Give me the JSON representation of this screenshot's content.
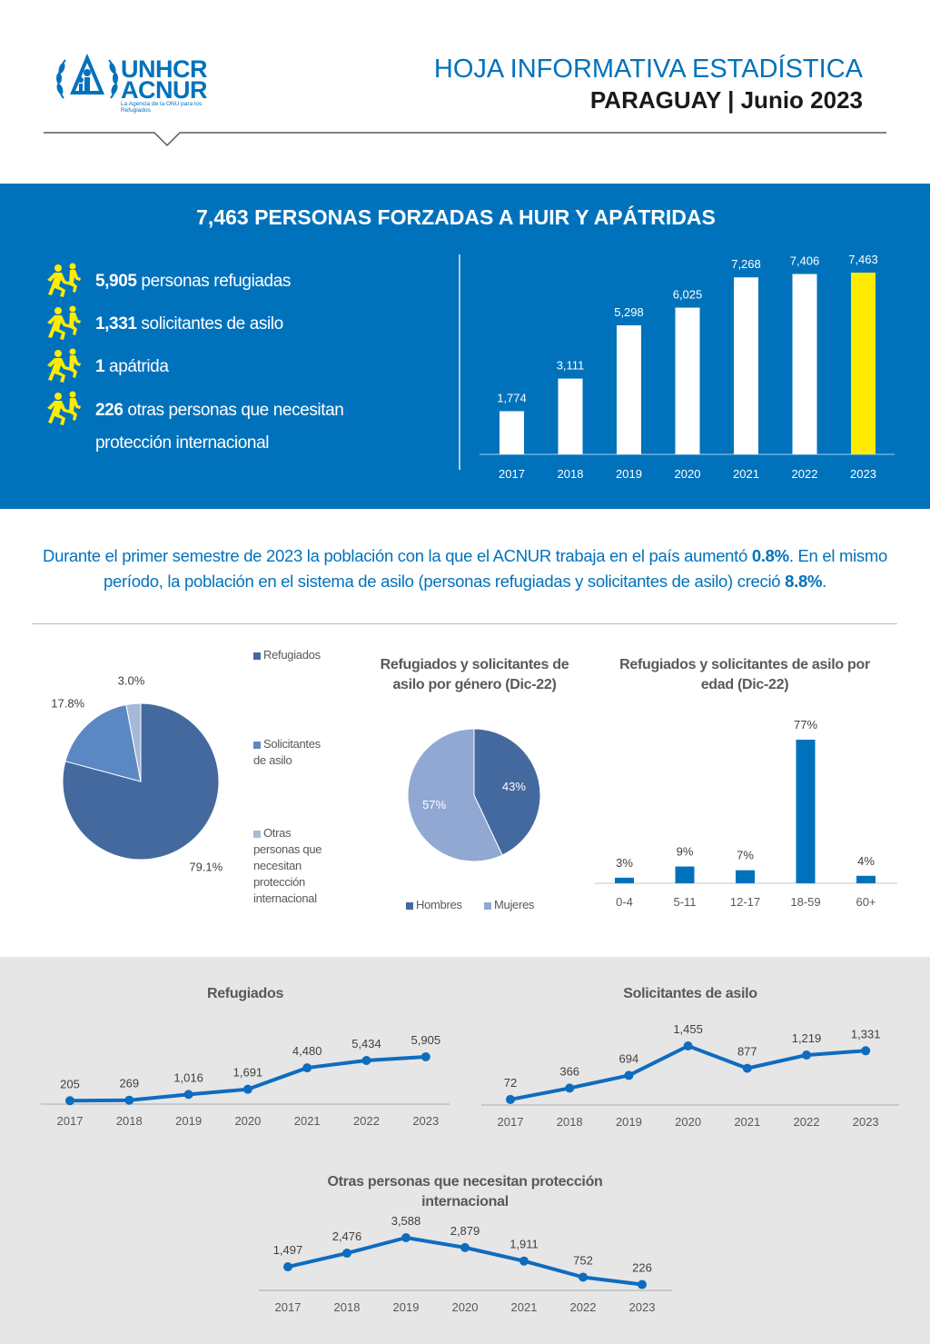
{
  "header": {
    "logo_line1": "UNHCR",
    "logo_line2": "ACNUR",
    "logo_sub": "La Agencia de la ONU para los Refugiados",
    "title": "HOJA INFORMATIVA ESTADÍSTICA",
    "subtitle": "PARAGUAY | Junio 2023"
  },
  "band": {
    "title": "7,463 PERSONAS FORZADAS A HUIR Y APÁTRIDAS",
    "stats": [
      {
        "value": "5,905",
        "label": " personas refugiadas"
      },
      {
        "value": "1,331",
        "label": " solicitantes de asilo"
      },
      {
        "value": "1",
        "label": " apátrida"
      },
      {
        "value": "226",
        "label": " otras personas que necesitan",
        "label2": "protección internacional"
      }
    ],
    "icon": "running-people-icon"
  },
  "intro": {
    "part1": "Durante el primer semestre de 2023 la población con la que el ACNUR trabaja en el país aumentó ",
    "bold1": "0.8%",
    "part2": ". En el mismo período, la población en el sistema de asilo (personas refugiadas y solicitantes de asilo) creció ",
    "bold2": "8.8%",
    "part3": "."
  },
  "colors": {
    "brand_blue": "#0072bc",
    "highlight_yellow": "#ffec00",
    "pie_refugiados": "#44699f",
    "pie_solicitantes": "#5b88c2",
    "pie_otros": "#a7b9d8",
    "gender_hombres": "#44699f",
    "gender_mujeres": "#91a8d2",
    "line_blue": "#0e6cbf"
  },
  "chart_data": [
    {
      "id": "total-bar",
      "type": "bar",
      "categories": [
        "2017",
        "2018",
        "2019",
        "2020",
        "2021",
        "2022",
        "2023"
      ],
      "values": [
        1774,
        3111,
        5298,
        6025,
        7268,
        7406,
        7463
      ],
      "value_labels": [
        "1,774",
        "3,111",
        "5,298",
        "6,025",
        "7,268",
        "7,406",
        "7,463"
      ],
      "highlight": "2023",
      "ylim": [
        0,
        7463
      ]
    },
    {
      "id": "composition-pie",
      "type": "pie",
      "labels": [
        "Refugiados",
        "Solicitantes de asilo",
        "Otras personas que necesitan protección internacional"
      ],
      "values": [
        79.1,
        17.8,
        3.0
      ],
      "value_labels": [
        "79.1%",
        "17.8%",
        "3.0%"
      ]
    },
    {
      "id": "gender-pie",
      "type": "pie",
      "title": "Refugiados y solicitantes de asilo por género (Dic-22)",
      "labels": [
        "Hombres",
        "Mujeres"
      ],
      "values": [
        43,
        57
      ],
      "value_labels": [
        "43%",
        "57%"
      ]
    },
    {
      "id": "age-bar",
      "type": "bar",
      "title": "Refugiados y solicitantes de asilo por edad (Dic-22)",
      "categories": [
        "0-4",
        "5-11",
        "12-17",
        "18-59",
        "60+"
      ],
      "values": [
        3,
        9,
        7,
        77,
        4
      ],
      "value_labels": [
        "3%",
        "9%",
        "7%",
        "77%",
        "4%"
      ],
      "ylim": [
        0,
        77
      ]
    },
    {
      "id": "refugiados-line",
      "type": "line",
      "title": "Refugiados",
      "x": [
        "2017",
        "2018",
        "2019",
        "2020",
        "2021",
        "2022",
        "2023"
      ],
      "values": [
        205,
        269,
        1016,
        1691,
        4480,
        5434,
        5905
      ],
      "value_labels": [
        "205",
        "269",
        "1,016",
        "1,691",
        "4,480",
        "5,434",
        "5,905"
      ]
    },
    {
      "id": "solicitantes-line",
      "type": "line",
      "title": "Solicitantes de asilo",
      "x": [
        "2017",
        "2018",
        "2019",
        "2020",
        "2021",
        "2022",
        "2023"
      ],
      "values": [
        72,
        366,
        694,
        1455,
        877,
        1219,
        1331
      ],
      "value_labels": [
        "72",
        "366",
        "694",
        "1,455",
        "877",
        "1,219",
        "1,331"
      ]
    },
    {
      "id": "otras-line",
      "type": "line",
      "title": "Otras personas que necesitan protección internacional",
      "x": [
        "2017",
        "2018",
        "2019",
        "2020",
        "2021",
        "2022",
        "2023"
      ],
      "values": [
        1497,
        2476,
        3588,
        2879,
        1911,
        752,
        226
      ],
      "value_labels": [
        "1,497",
        "2,476",
        "3,588",
        "2,879",
        "1,911",
        "752",
        "226"
      ]
    }
  ]
}
